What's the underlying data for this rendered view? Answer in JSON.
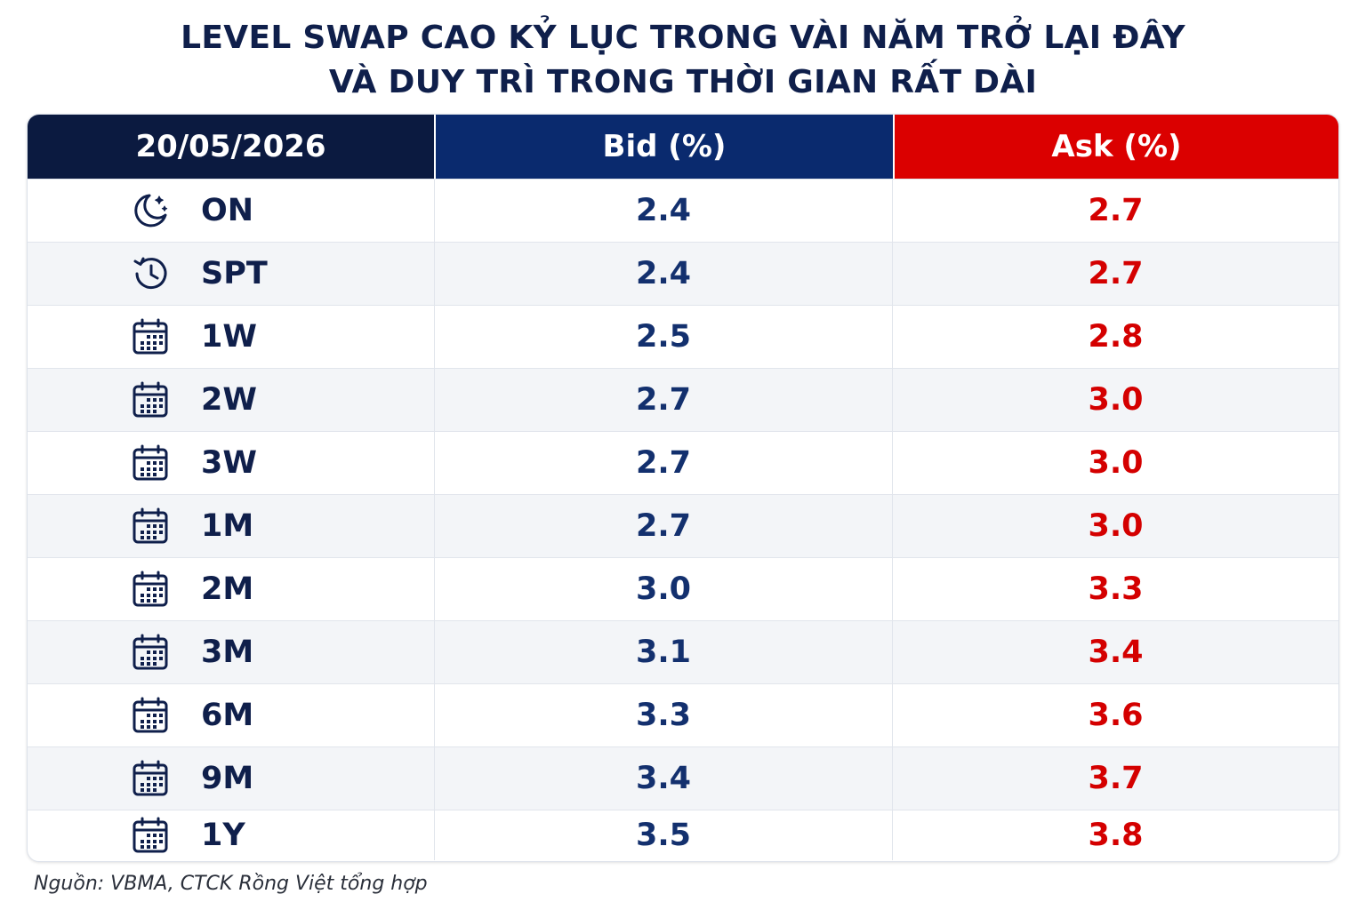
{
  "title": {
    "line1": "LEVEL SWAP CAO KỶ LỤC TRONG VÀI NĂM TRỞ LẠI ĐÂY",
    "line2": "VÀ DUY TRÌ TRONG THỜI GIAN RẤT DÀI"
  },
  "colors": {
    "navy": "#0b1a40",
    "bid_blue": "#0a2a6e",
    "ask_red": "#db0000"
  },
  "chart_data": {
    "type": "table",
    "columns": [
      "20/05/2026",
      "Bid (%)",
      "Ask (%)"
    ],
    "rows": [
      {
        "tenor": "ON",
        "icon": "moon-stars-icon",
        "bid": "2.4",
        "ask": "2.7"
      },
      {
        "tenor": "SPT",
        "icon": "clock-history-icon",
        "bid": "2.4",
        "ask": "2.7"
      },
      {
        "tenor": "1W",
        "icon": "calendar-icon",
        "bid": "2.5",
        "ask": "2.8"
      },
      {
        "tenor": "2W",
        "icon": "calendar-icon",
        "bid": "2.7",
        "ask": "3.0"
      },
      {
        "tenor": "3W",
        "icon": "calendar-icon",
        "bid": "2.7",
        "ask": "3.0"
      },
      {
        "tenor": "1M",
        "icon": "calendar-icon",
        "bid": "2.7",
        "ask": "3.0"
      },
      {
        "tenor": "2M",
        "icon": "calendar-icon",
        "bid": "3.0",
        "ask": "3.3"
      },
      {
        "tenor": "3M",
        "icon": "calendar-icon",
        "bid": "3.1",
        "ask": "3.4"
      },
      {
        "tenor": "6M",
        "icon": "calendar-icon",
        "bid": "3.3",
        "ask": "3.6"
      },
      {
        "tenor": "9M",
        "icon": "calendar-icon",
        "bid": "3.4",
        "ask": "3.7"
      },
      {
        "tenor": "1Y",
        "icon": "calendar-icon",
        "bid": "3.5",
        "ask": "3.8"
      }
    ]
  },
  "source": "Nguồn: VBMA, CTCK Rồng Việt tổng hợp"
}
